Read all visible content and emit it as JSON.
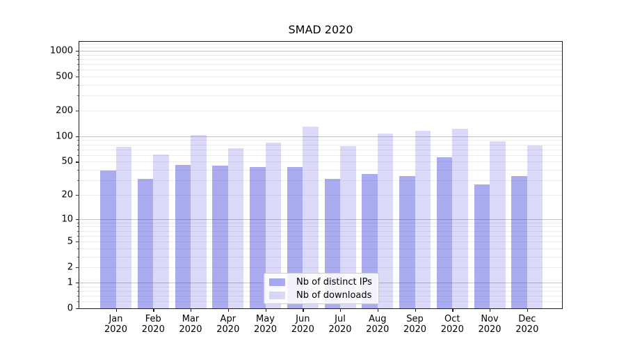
{
  "chart_data": {
    "type": "bar",
    "title": "SMAD 2020",
    "categories": [
      "Jan",
      "Feb",
      "Mar",
      "Apr",
      "May",
      "Jun",
      "Jul",
      "Aug",
      "Sep",
      "Oct",
      "Nov",
      "Dec"
    ],
    "category_year": "2020",
    "series": [
      {
        "name": "Nb of distinct IPs",
        "color": "rgba(68,68,221,0.45)",
        "values": [
          39,
          31,
          46,
          45,
          43,
          43,
          31,
          36,
          34,
          57,
          27,
          34
        ]
      },
      {
        "name": "Nb of downloads",
        "color": "rgba(68,68,221,0.2)",
        "values": [
          75,
          61,
          104,
          72,
          84,
          130,
          76,
          108,
          116,
          123,
          88,
          78
        ]
      }
    ],
    "yscale": "symlog",
    "y_ticks": [
      0,
      1,
      2,
      5,
      10,
      20,
      50,
      100,
      200,
      500,
      1000
    ],
    "ylim": [
      0,
      1300
    ],
    "xlabel": "",
    "ylabel": "",
    "grid": true,
    "legend_position": "lower center"
  },
  "colors": {
    "bar_ips": "rgba(68,68,221,0.45)",
    "bar_downloads": "rgba(68,68,221,0.2)",
    "major_grid": "#c3c3c3",
    "minor_grid": "#ececec",
    "axis": "#1a1a1a",
    "text": "#000000"
  }
}
